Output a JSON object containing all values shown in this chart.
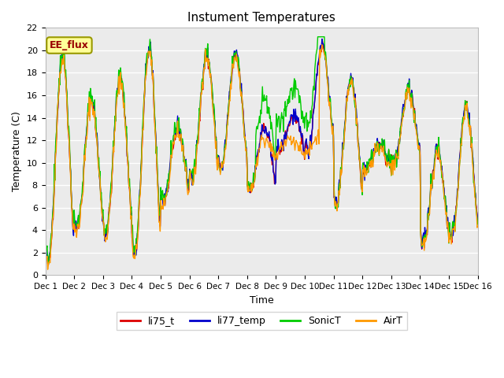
{
  "title": "Instument Temperatures",
  "ylabel": "Temperature (C)",
  "xlabel": "Time",
  "ylim": [
    0,
    22
  ],
  "annotation": "EE_flux",
  "colors": {
    "li75_t": "#dd0000",
    "li77_temp": "#0000cc",
    "SonicT": "#00cc00",
    "AirT": "#ff9900"
  },
  "xtick_labels": [
    "Dec 1",
    "Dec 2",
    "Dec 3",
    "Dec 4",
    "Dec 5",
    "Dec 6",
    "Dec 7",
    "Dec 8",
    "Dec 9",
    "Dec 10",
    "Dec 11",
    "Dec 12",
    "Dec 13",
    "Dec 14",
    "Dec 15",
    "Dec 16"
  ],
  "n_days": 15,
  "seed": 42
}
